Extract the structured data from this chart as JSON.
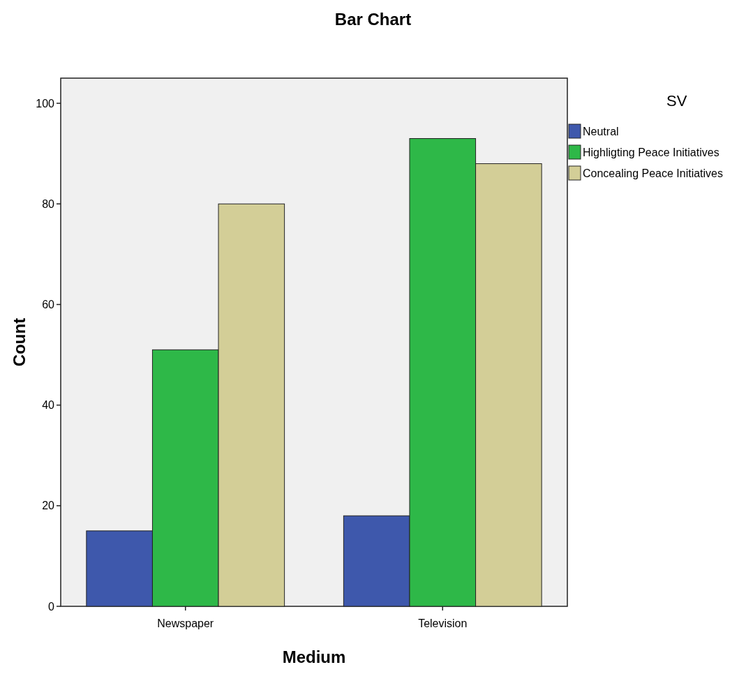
{
  "chart_data": {
    "type": "bar",
    "title": "Bar Chart",
    "xlabel": "Medium",
    "ylabel": "Count",
    "legend_title": "SV",
    "categories": [
      "Newspaper",
      "Television"
    ],
    "series": [
      {
        "name": "Neutral",
        "color": "#3e58ac",
        "values": [
          15,
          18
        ]
      },
      {
        "name": "Highligting Peace Initiatives",
        "color": "#2eb848",
        "values": [
          51,
          93
        ]
      },
      {
        "name": "Concealing Peace Initiatives",
        "color": "#d3ce97",
        "values": [
          80,
          88
        ]
      }
    ],
    "ylim": [
      0,
      105
    ],
    "yticks": [
      0,
      20,
      40,
      60,
      80,
      100
    ],
    "legend": "top right",
    "grid": false
  }
}
